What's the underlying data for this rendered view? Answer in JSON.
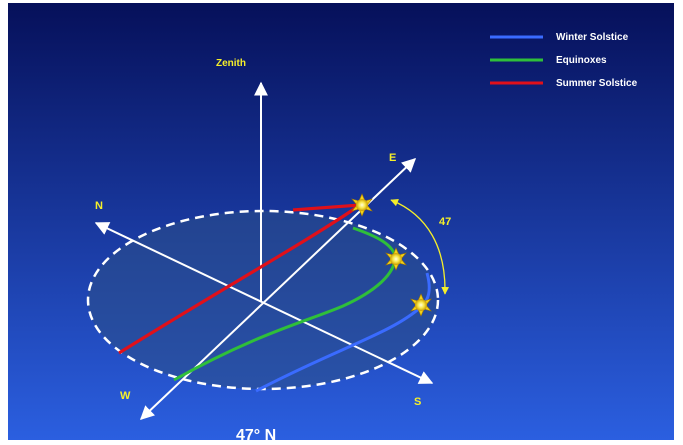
{
  "diagram": {
    "labels": {
      "zenith": "Zenith",
      "north": "N",
      "east": "E",
      "south": "S",
      "west": "W",
      "angle": "47",
      "latitude": "47° N"
    },
    "legend": [
      {
        "label": "Winter Solstice",
        "color": "#3a6bff"
      },
      {
        "label": "Equinoxes",
        "color": "#2fbf3a"
      },
      {
        "label": "Summer Solstice",
        "color": "#e0101a"
      }
    ],
    "colors": {
      "background_top": "#06105a",
      "background_bottom": "#2b5fe0",
      "label_yellow": "#f5ef2a",
      "axis": "#ffffff",
      "horizon": "#ffffff"
    },
    "icons": [
      "sun-icon",
      "sun-icon",
      "sun-icon"
    ]
  }
}
